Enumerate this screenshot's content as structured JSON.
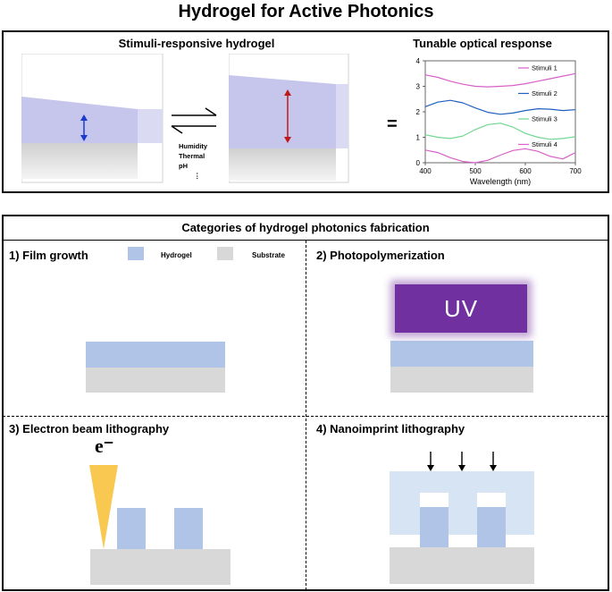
{
  "title": "Hydrogel for Active Photonics",
  "top_panel": {
    "left_title": "Stimuli-responsive hydrogel",
    "right_title": "Tunable optical response",
    "conditions": [
      "Humidity",
      "Thermal",
      "pH",
      "⋮"
    ],
    "equals": "="
  },
  "chart_data": {
    "type": "line",
    "xlabel": "Wavelength (nm)",
    "xlim": [
      400,
      700
    ],
    "ylim": [
      0,
      4
    ],
    "x_ticks": [
      400,
      500,
      600,
      700
    ],
    "y_ticks": [
      0,
      1,
      2,
      3,
      4
    ],
    "legend_placement": "right of each curve",
    "series": [
      {
        "name": "Stimuli 1",
        "color": "#d860c8",
        "x": [
          400,
          425,
          450,
          475,
          500,
          525,
          550,
          575,
          600,
          625,
          650,
          675,
          700
        ],
        "y": [
          3.45,
          3.35,
          3.2,
          3.08,
          3.0,
          2.98,
          3.0,
          3.03,
          3.1,
          3.2,
          3.3,
          3.4,
          3.5
        ]
      },
      {
        "name": "Stimuli 2",
        "color": "#2060c0",
        "x": [
          400,
          425,
          450,
          475,
          500,
          525,
          550,
          575,
          600,
          625,
          650,
          675,
          700
        ],
        "y": [
          2.2,
          2.38,
          2.45,
          2.35,
          2.15,
          1.98,
          1.9,
          1.95,
          2.05,
          2.12,
          2.1,
          2.05,
          2.08
        ]
      },
      {
        "name": "Stimuli 3",
        "color": "#70d890",
        "x": [
          400,
          425,
          450,
          475,
          500,
          525,
          550,
          575,
          600,
          625,
          650,
          675,
          700
        ],
        "y": [
          1.1,
          1.0,
          0.95,
          1.05,
          1.3,
          1.5,
          1.55,
          1.4,
          1.15,
          1.0,
          0.92,
          0.95,
          1.02
        ]
      },
      {
        "name": "Stimuli 4",
        "color": "#d860c8",
        "x": [
          400,
          425,
          450,
          475,
          500,
          525,
          550,
          575,
          600,
          625,
          650,
          675,
          700
        ],
        "y": [
          0.5,
          0.4,
          0.2,
          0.05,
          0.0,
          0.1,
          0.3,
          0.48,
          0.55,
          0.45,
          0.25,
          0.15,
          0.4
        ]
      }
    ]
  },
  "bottom_panel": {
    "title": "Categories of hydrogel photonics fabrication",
    "q1": "1) Film growth",
    "q2": "2) Photopolymerization",
    "q3": "3) Electron beam lithography",
    "q4": "4) Nanoimprint lithography",
    "legend_hydrogel": "Hydrogel",
    "legend_substrate": "Substrate",
    "uv": "UV",
    "electron": "e⁻",
    "colors": {
      "hydrogel": "#b0c4e8",
      "substrate": "#d8d8d8",
      "uv": "#7030a0",
      "beam": "#f8c850",
      "mold": "#d6e4f4"
    }
  }
}
